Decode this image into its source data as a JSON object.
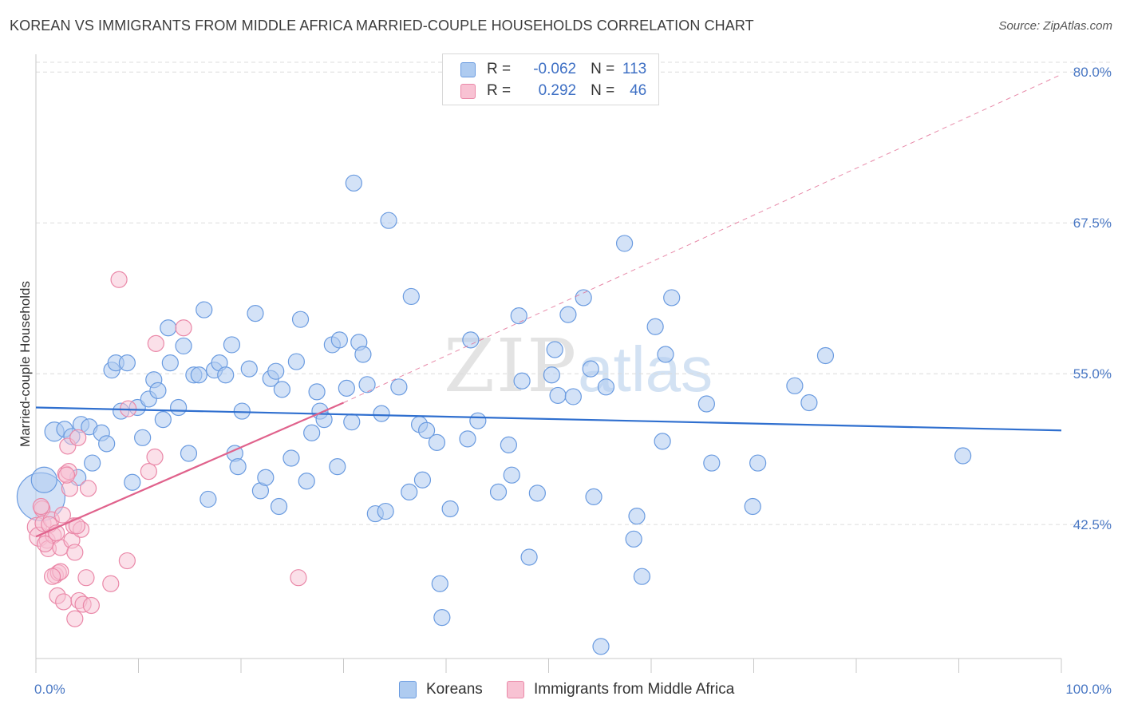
{
  "header": {
    "title": "KOREAN VS IMMIGRANTS FROM MIDDLE AFRICA MARRIED-COUPLE HOUSEHOLDS CORRELATION CHART",
    "source": "Source: ZipAtlas.com"
  },
  "watermark": {
    "zip": "ZIP",
    "atlas": "atlas"
  },
  "legend": {
    "korean": {
      "r_label": "R =",
      "r_value": "-0.062",
      "n_label": "N =",
      "n_value": "113"
    },
    "africa": {
      "r_label": "R =",
      "r_value": "0.292",
      "n_label": "N =",
      "n_value": "46"
    }
  },
  "bottom_legend": {
    "korean": "Koreans",
    "africa": "Immigrants from Middle Africa"
  },
  "colors": {
    "korean_fill": "#aecbf0",
    "korean_stroke": "#6a9be0",
    "korean_line": "#2f6fcf",
    "africa_fill": "#f8c2d3",
    "africa_stroke": "#ea88a8",
    "africa_line": "#e0628c",
    "grid": "#dcdcdc",
    "axis_label": "#4a78c4"
  },
  "chart_data": {
    "type": "scatter",
    "title": "KOREAN VS IMMIGRANTS FROM MIDDLE AFRICA MARRIED-COUPLE HOUSEHOLDS CORRELATION CHART",
    "xlabel": "",
    "ylabel": "Married-couple Households",
    "xlim": [
      0,
      100
    ],
    "ylim": [
      31.4,
      82.0
    ],
    "x_tick_labels": [
      "0.0%",
      "100.0%"
    ],
    "y_ticks": [
      42.5,
      55.0,
      67.5,
      80.0
    ],
    "y_tick_labels": [
      "42.5%",
      "55.0%",
      "67.5%",
      "80.0%"
    ],
    "grid": "horizontal dashed",
    "series": [
      {
        "name": "Koreans",
        "R": -0.062,
        "N": 113,
        "trend": {
          "x": [
            0,
            100
          ],
          "y": [
            52.2,
            50.3
          ]
        },
        "points": [
          [
            0.5,
            44.8,
            30
          ],
          [
            0.8,
            46.2,
            16
          ],
          [
            1.8,
            50.2,
            12
          ],
          [
            2.8,
            50.4,
            10
          ],
          [
            3.5,
            49.8,
            10
          ],
          [
            4.1,
            46.4,
            10
          ],
          [
            4.4,
            50.8,
            10
          ],
          [
            5.2,
            50.6,
            10
          ],
          [
            5.5,
            47.6,
            10
          ],
          [
            6.4,
            50.1,
            10
          ],
          [
            6.9,
            49.2,
            10
          ],
          [
            7.4,
            55.3,
            10
          ],
          [
            7.8,
            55.9,
            10
          ],
          [
            8.3,
            51.9,
            10
          ],
          [
            8.9,
            55.9,
            10
          ],
          [
            9.4,
            46.0,
            10
          ],
          [
            9.9,
            52.2,
            10
          ],
          [
            10.4,
            49.7,
            10
          ],
          [
            11.0,
            52.9,
            10
          ],
          [
            11.5,
            54.5,
            10
          ],
          [
            11.9,
            53.6,
            10
          ],
          [
            12.4,
            51.2,
            10
          ],
          [
            12.9,
            58.8,
            10
          ],
          [
            13.1,
            55.9,
            10
          ],
          [
            13.9,
            52.2,
            10
          ],
          [
            14.4,
            57.3,
            10
          ],
          [
            14.9,
            48.4,
            10
          ],
          [
            15.4,
            54.9,
            10
          ],
          [
            15.9,
            54.9,
            10
          ],
          [
            16.4,
            60.3,
            10
          ],
          [
            16.8,
            44.6,
            10
          ],
          [
            17.4,
            55.3,
            10
          ],
          [
            17.9,
            55.9,
            10
          ],
          [
            18.5,
            54.9,
            10
          ],
          [
            19.1,
            57.4,
            10
          ],
          [
            19.4,
            48.4,
            10
          ],
          [
            19.7,
            47.3,
            10
          ],
          [
            20.1,
            51.9,
            10
          ],
          [
            20.8,
            55.4,
            10
          ],
          [
            21.4,
            60.0,
            10
          ],
          [
            21.9,
            45.3,
            10
          ],
          [
            22.4,
            46.4,
            10
          ],
          [
            22.9,
            54.6,
            10
          ],
          [
            23.4,
            55.2,
            10
          ],
          [
            23.7,
            44.0,
            10
          ],
          [
            24.0,
            53.7,
            10
          ],
          [
            24.9,
            48.0,
            10
          ],
          [
            25.4,
            56.0,
            10
          ],
          [
            25.8,
            59.5,
            10
          ],
          [
            26.4,
            46.1,
            10
          ],
          [
            26.9,
            50.1,
            10
          ],
          [
            27.4,
            53.5,
            10
          ],
          [
            27.7,
            51.9,
            10
          ],
          [
            28.1,
            51.2,
            10
          ],
          [
            28.9,
            57.4,
            10
          ],
          [
            29.4,
            47.3,
            10
          ],
          [
            29.6,
            57.8,
            10
          ],
          [
            30.3,
            53.8,
            10
          ],
          [
            30.8,
            51.0,
            10
          ],
          [
            31.5,
            57.6,
            10
          ],
          [
            31.9,
            56.6,
            10
          ],
          [
            32.3,
            54.1,
            10
          ],
          [
            31.0,
            70.8,
            10
          ],
          [
            33.1,
            43.4,
            10
          ],
          [
            33.7,
            51.7,
            10
          ],
          [
            34.1,
            43.6,
            10
          ],
          [
            34.4,
            67.7,
            10
          ],
          [
            35.4,
            53.9,
            10
          ],
          [
            36.4,
            45.2,
            10
          ],
          [
            36.6,
            61.4,
            10
          ],
          [
            37.4,
            50.8,
            10
          ],
          [
            37.7,
            46.2,
            10
          ],
          [
            38.1,
            50.3,
            10
          ],
          [
            39.1,
            49.3,
            10
          ],
          [
            39.4,
            37.6,
            10
          ],
          [
            39.6,
            34.8,
            10
          ],
          [
            40.4,
            43.8,
            10
          ],
          [
            42.1,
            49.6,
            10
          ],
          [
            42.4,
            57.8,
            10
          ],
          [
            43.1,
            51.1,
            10
          ],
          [
            45.1,
            45.2,
            10
          ],
          [
            46.1,
            49.1,
            10
          ],
          [
            46.4,
            46.6,
            10
          ],
          [
            47.1,
            59.8,
            10
          ],
          [
            47.4,
            54.4,
            10
          ],
          [
            48.1,
            39.8,
            10
          ],
          [
            48.9,
            45.1,
            10
          ],
          [
            50.3,
            54.9,
            10
          ],
          [
            50.6,
            57.0,
            10
          ],
          [
            50.9,
            53.2,
            10
          ],
          [
            51.9,
            59.9,
            10
          ],
          [
            52.4,
            53.1,
            10
          ],
          [
            53.4,
            61.3,
            10
          ],
          [
            54.1,
            55.4,
            10
          ],
          [
            54.4,
            44.8,
            10
          ],
          [
            55.1,
            32.4,
            10
          ],
          [
            55.6,
            53.9,
            10
          ],
          [
            57.4,
            65.8,
            10
          ],
          [
            58.3,
            41.3,
            10
          ],
          [
            58.6,
            43.2,
            10
          ],
          [
            59.1,
            38.2,
            10
          ],
          [
            60.4,
            58.9,
            10
          ],
          [
            61.1,
            49.4,
            10
          ],
          [
            61.4,
            56.6,
            10
          ],
          [
            62.0,
            61.3,
            10
          ],
          [
            65.4,
            52.5,
            10
          ],
          [
            65.9,
            47.6,
            10
          ],
          [
            69.9,
            44.0,
            10
          ],
          [
            70.4,
            47.6,
            10
          ],
          [
            75.4,
            52.6,
            10
          ],
          [
            90.4,
            48.2,
            10
          ],
          [
            74.0,
            54.0,
            10
          ],
          [
            77.0,
            56.5,
            10
          ]
        ]
      },
      {
        "name": "Immigrants from Middle Africa",
        "R": 0.292,
        "N": 46,
        "trend_solid": {
          "x": [
            0,
            30.0
          ],
          "y": [
            41.5,
            52.6
          ]
        },
        "trend_dashed": {
          "x": [
            30.0,
            100
          ],
          "y": [
            52.6,
            79.8
          ]
        },
        "points": [
          [
            0.1,
            42.3,
            12
          ],
          [
            0.3,
            41.5,
            12
          ],
          [
            0.6,
            43.8,
            10
          ],
          [
            0.7,
            42.6,
            10
          ],
          [
            1.1,
            41.2,
            10
          ],
          [
            1.2,
            40.5,
            10
          ],
          [
            1.5,
            42.9,
            10
          ],
          [
            1.7,
            41.6,
            10
          ],
          [
            1.9,
            38.3,
            10
          ],
          [
            2.1,
            36.6,
            10
          ],
          [
            2.2,
            38.5,
            10
          ],
          [
            2.4,
            40.6,
            10
          ],
          [
            2.6,
            43.3,
            10
          ],
          [
            2.7,
            36.1,
            10
          ],
          [
            2.9,
            46.7,
            10
          ],
          [
            3.1,
            49.0,
            10
          ],
          [
            3.2,
            46.9,
            10
          ],
          [
            3.3,
            45.5,
            10
          ],
          [
            3.5,
            41.2,
            10
          ],
          [
            3.7,
            42.4,
            10
          ],
          [
            3.8,
            40.2,
            10
          ],
          [
            3.8,
            34.7,
            10
          ],
          [
            4.1,
            49.7,
            10
          ],
          [
            4.2,
            36.2,
            10
          ],
          [
            4.4,
            42.1,
            10
          ],
          [
            4.6,
            35.9,
            10
          ],
          [
            4.9,
            38.1,
            10
          ],
          [
            5.1,
            45.5,
            10
          ],
          [
            5.4,
            35.8,
            10
          ],
          [
            7.3,
            37.6,
            10
          ],
          [
            8.1,
            62.8,
            10
          ],
          [
            8.9,
            39.5,
            10
          ],
          [
            9.0,
            52.1,
            10
          ],
          [
            11.0,
            46.9,
            10
          ],
          [
            11.6,
            48.1,
            10
          ],
          [
            11.7,
            57.5,
            10
          ],
          [
            14.4,
            58.8,
            10
          ],
          [
            25.6,
            38.1,
            10
          ],
          [
            1.3,
            42.5,
            10
          ],
          [
            0.9,
            40.9,
            10
          ],
          [
            2.4,
            38.6,
            10
          ],
          [
            3.0,
            46.6,
            10
          ],
          [
            1.6,
            38.2,
            10
          ],
          [
            4.0,
            42.4,
            10
          ],
          [
            0.5,
            44.0,
            10
          ],
          [
            2.0,
            41.8,
            10
          ]
        ]
      }
    ]
  }
}
